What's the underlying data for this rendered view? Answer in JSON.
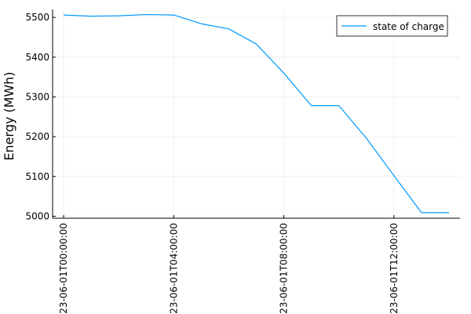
{
  "chart_data": {
    "type": "line",
    "title": "",
    "xlabel": "",
    "ylabel": "Energy (MWh)",
    "x_hours": [
      0,
      1,
      2,
      3,
      4,
      5,
      6,
      7,
      8,
      9,
      10,
      11,
      12,
      13,
      14
    ],
    "x_ticks": [
      {
        "hour": 0,
        "label": "2023-06-01T00:00:00"
      },
      {
        "hour": 4,
        "label": "2023-06-01T04:00:00"
      },
      {
        "hour": 8,
        "label": "2023-06-01T08:00:00"
      },
      {
        "hour": 12,
        "label": "2023-06-01T12:00:00"
      }
    ],
    "y_ticks": [
      5000,
      5100,
      5200,
      5300,
      5400,
      5500
    ],
    "ylim": [
      4995,
      5520
    ],
    "xlim": [
      -0.4,
      14.4
    ],
    "grid": true,
    "legend": {
      "position": "top-right"
    },
    "series": [
      {
        "name": "state of charge",
        "color": "#009AFA",
        "values": [
          5506,
          5503,
          5504,
          5507,
          5506,
          5484,
          5471,
          5433,
          5360,
          5278,
          5278,
          5196,
          5102,
          5009,
          5009
        ]
      }
    ]
  }
}
